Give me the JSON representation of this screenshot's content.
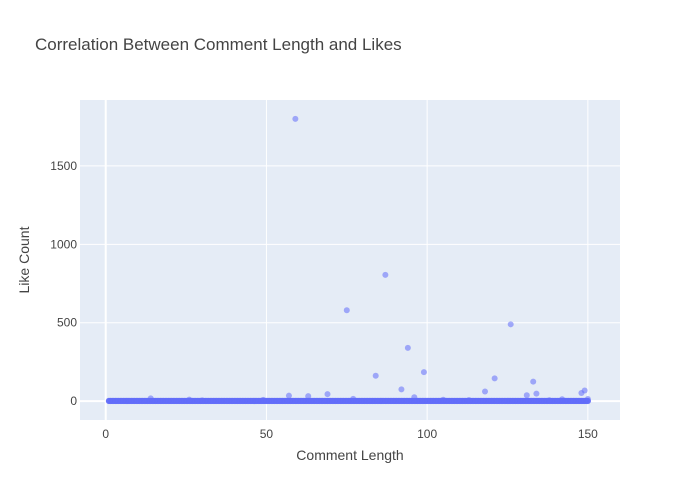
{
  "chart_data": {
    "type": "scatter",
    "title": "Correlation Between Comment Length and Likes",
    "xlabel": "Comment Length",
    "ylabel": "Like Count",
    "xlim": [
      -8,
      160
    ],
    "ylim": [
      -120,
      1920
    ],
    "xticks": [
      0,
      50,
      100,
      150
    ],
    "yticks": [
      0,
      500,
      1000,
      1500
    ],
    "grid": true,
    "legend": "none",
    "colors": {
      "marker": "#636efa",
      "plot_bg": "#e5ecf6",
      "grid": "#ffffff",
      "text": "#444444"
    },
    "marker_opacity": 0.55,
    "points": [
      {
        "x": 59,
        "y": 1800
      },
      {
        "x": 87,
        "y": 805
      },
      {
        "x": 75,
        "y": 580
      },
      {
        "x": 126,
        "y": 490
      },
      {
        "x": 94,
        "y": 340
      },
      {
        "x": 99,
        "y": 185
      },
      {
        "x": 84,
        "y": 162
      },
      {
        "x": 121,
        "y": 145
      },
      {
        "x": 133,
        "y": 125
      },
      {
        "x": 92,
        "y": 75
      },
      {
        "x": 149,
        "y": 68
      },
      {
        "x": 118,
        "y": 62
      },
      {
        "x": 148,
        "y": 52
      },
      {
        "x": 134,
        "y": 48
      },
      {
        "x": 69,
        "y": 45
      },
      {
        "x": 131,
        "y": 38
      },
      {
        "x": 57,
        "y": 35
      },
      {
        "x": 63,
        "y": 32
      },
      {
        "x": 96,
        "y": 25
      },
      {
        "x": 14,
        "y": 18
      },
      {
        "x": 77,
        "y": 15
      },
      {
        "x": 150,
        "y": 14
      },
      {
        "x": 142,
        "y": 12
      },
      {
        "x": 26,
        "y": 10
      },
      {
        "x": 49,
        "y": 8
      },
      {
        "x": 105,
        "y": 9
      },
      {
        "x": 113,
        "y": 7
      },
      {
        "x": 138,
        "y": 6
      },
      {
        "x": 30,
        "y": 5
      }
    ],
    "dense_x_range": [
      1,
      150
    ],
    "dense_y_values": [
      0,
      1,
      2,
      3
    ]
  }
}
